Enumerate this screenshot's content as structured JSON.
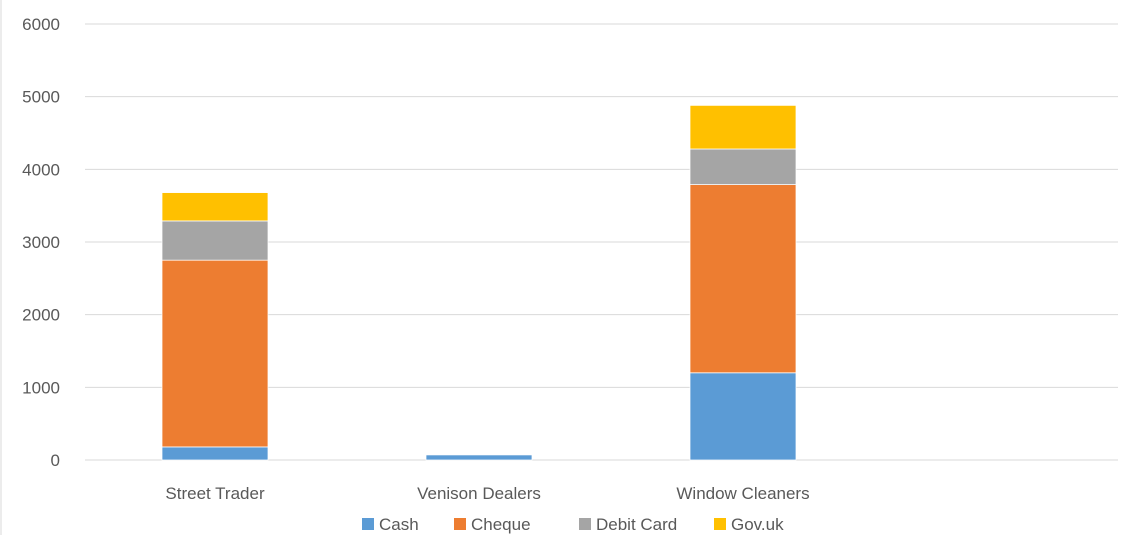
{
  "chart_data": {
    "type": "bar",
    "stacked": true,
    "title": "",
    "xlabel": "",
    "ylabel": "",
    "categories": [
      "Street Trader",
      "Venison Dealers",
      "Window Cleaners"
    ],
    "series": [
      {
        "name": "Cash",
        "color": "#5B9BD5",
        "values": [
          180,
          70,
          1200
        ]
      },
      {
        "name": "Cheque",
        "color": "#ED7D31",
        "values": [
          2570,
          0,
          2590
        ]
      },
      {
        "name": "Debit Card",
        "color": "#A5A5A5",
        "values": [
          540,
          0,
          490
        ]
      },
      {
        "name": "Gov.uk",
        "color": "#FFC000",
        "values": [
          390,
          0,
          600
        ]
      }
    ],
    "ylim": [
      0,
      6000
    ],
    "yticks": [
      0,
      1000,
      2000,
      3000,
      4000,
      5000,
      6000
    ],
    "grid": true,
    "legend": "bottom"
  }
}
